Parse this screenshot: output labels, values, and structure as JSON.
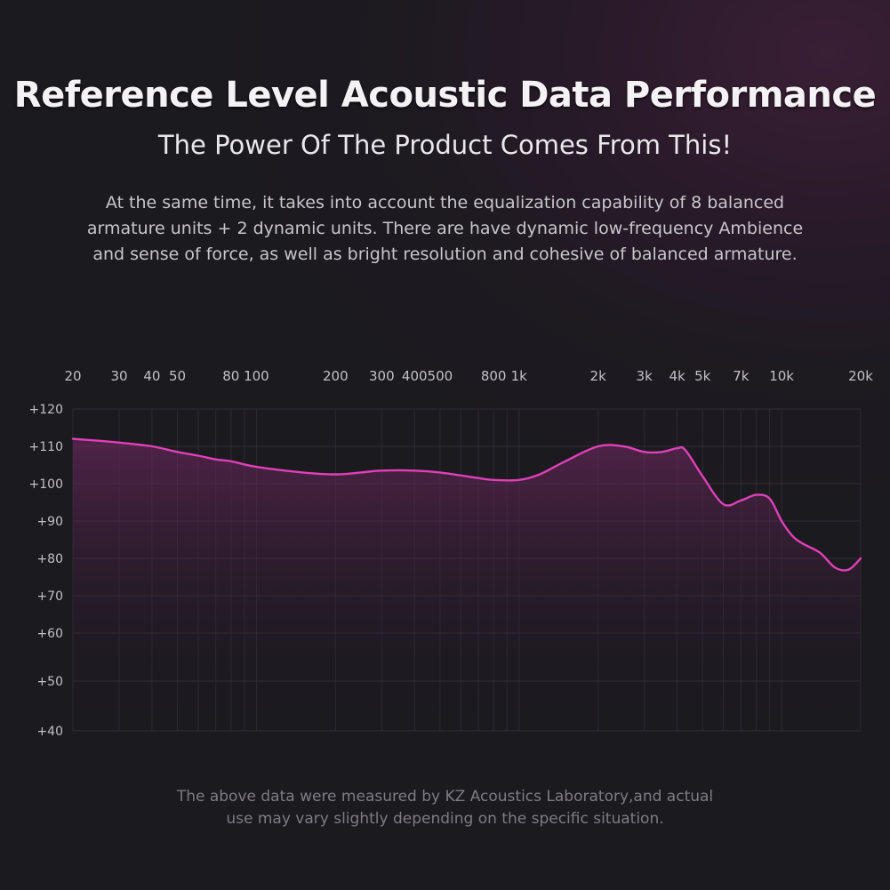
{
  "header": {
    "title": "Reference Level Acoustic Data Performance",
    "subtitle": "The Power Of The Product Comes From This!",
    "description_lines": [
      "At the same time, it takes into account the equalization capability of 8 balanced",
      "armature units + 2 dynamic units. There are have dynamic low-frequency Ambience",
      "and sense of force, as well as bright resolution and cohesive of balanced armature."
    ]
  },
  "footer": {
    "note_lines": [
      "The above data were measured by KZ Acoustics Laboratory,and actual",
      "use may vary slightly depending on the specific situation."
    ]
  },
  "colors": {
    "curve": "#e040b8",
    "fill_top": "#7a2a6a",
    "grid": "#3a3840",
    "axis_text": "#c3c1c6"
  },
  "chart_data": {
    "type": "line",
    "title": "",
    "xlabel": "",
    "ylabel": "",
    "x_scale": "log",
    "xlim": [
      20,
      20000
    ],
    "x_ticks": [
      {
        "value": 20,
        "label": "20"
      },
      {
        "value": 30,
        "label": "30"
      },
      {
        "value": 40,
        "label": "40"
      },
      {
        "value": 50,
        "label": "50"
      },
      {
        "value": 80,
        "label": "80"
      },
      {
        "value": 100,
        "label": "100"
      },
      {
        "value": 200,
        "label": "200"
      },
      {
        "value": 300,
        "label": "300"
      },
      {
        "value": 400,
        "label": "400"
      },
      {
        "value": 500,
        "label": "500"
      },
      {
        "value": 800,
        "label": "800"
      },
      {
        "value": 1000,
        "label": "1k"
      },
      {
        "value": 2000,
        "label": "2k"
      },
      {
        "value": 3000,
        "label": "3k"
      },
      {
        "value": 4000,
        "label": "4k"
      },
      {
        "value": 5000,
        "label": "5k"
      },
      {
        "value": 7000,
        "label": "7k"
      },
      {
        "value": 10000,
        "label": "10k"
      },
      {
        "value": 20000,
        "label": "20k"
      }
    ],
    "y_ticks": [
      {
        "value": 120,
        "label": "+120"
      },
      {
        "value": 110,
        "label": "+110"
      },
      {
        "value": 100,
        "label": "+100"
      },
      {
        "value": 90,
        "label": "+90"
      },
      {
        "value": 80,
        "label": "+80"
      },
      {
        "value": 70,
        "label": "+70"
      },
      {
        "value": 60,
        "label": "+60"
      },
      {
        "value": 50,
        "label": "+50"
      },
      {
        "value": 40,
        "label": "+40"
      }
    ],
    "grid": true,
    "series": [
      {
        "x": [
          20,
          25,
          30,
          40,
          50,
          60,
          70,
          80,
          100,
          150,
          200,
          250,
          300,
          400,
          500,
          700,
          800,
          1000,
          1200,
          1500,
          2000,
          2500,
          3000,
          3500,
          4000,
          4300,
          5000,
          6000,
          7000,
          8000,
          9000,
          10000,
          11000,
          12000,
          14000,
          16000,
          18000,
          20000
        ],
        "y": [
          112,
          111.5,
          111,
          110,
          108.5,
          107.5,
          106.5,
          106,
          104.5,
          103,
          102.5,
          103,
          103.5,
          103.5,
          103,
          101.5,
          101,
          101,
          102.5,
          106,
          110,
          110,
          108.5,
          108.5,
          109.5,
          109,
          102,
          94.5,
          95.5,
          97,
          96,
          90,
          86,
          84,
          81.5,
          77.5,
          77,
          80
        ]
      }
    ]
  }
}
